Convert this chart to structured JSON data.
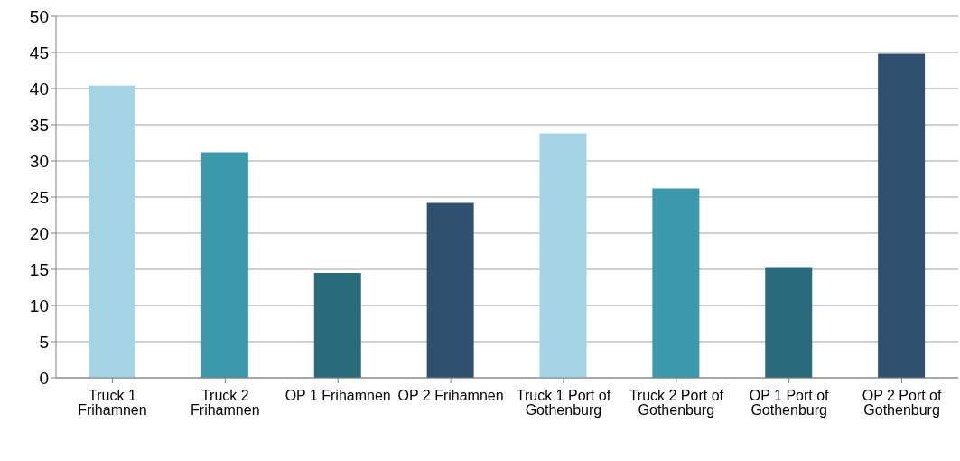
{
  "chart_data": {
    "type": "bar",
    "categories": [
      "Truck 1 Frihamnen",
      "Truck 2 Frihamnen",
      "OP 1 Frihamnen",
      "OP 2 Frihamnen",
      "Truck 1 Port of Gothenburg",
      "Truck 2 Port of Gothenburg",
      "OP 1 Port of Gothenburg",
      "OP 2 Port of Gothenburg"
    ],
    "values": [
      40.4,
      31.2,
      14.5,
      24.2,
      33.8,
      26.2,
      15.3,
      44.8
    ],
    "colors": [
      "#a5d5e5",
      "#3c98ad",
      "#286c7b",
      "#30506f",
      "#a5d5e5",
      "#3c98ad",
      "#286c7b",
      "#30506f"
    ],
    "ylim": [
      0,
      50
    ],
    "yticks": [
      0,
      5,
      10,
      15,
      20,
      25,
      30,
      35,
      40,
      45,
      50
    ],
    "grid": "y",
    "legend": false
  }
}
